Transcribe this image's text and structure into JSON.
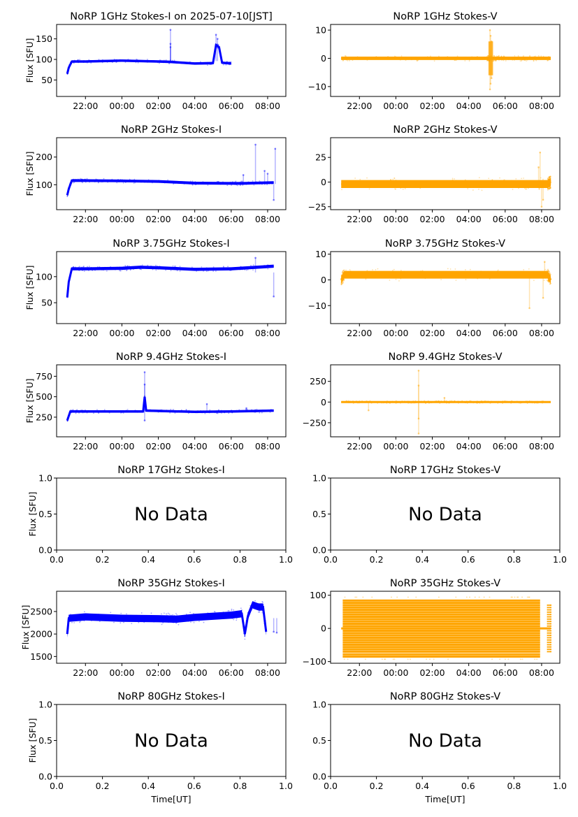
{
  "figure": {
    "xlabel": "Time[UT]",
    "ylabel": "Flux [SFU]",
    "nodata_text": "No Data",
    "colors": {
      "stokes_i": "#0000ff",
      "stokes_v": "#ffa500",
      "axes": "#000000"
    }
  },
  "chart_data": [
    {
      "id": "1g-i",
      "type": "scatter",
      "title": "NoRP 1GHz Stokes-I on 2025-07-10[JST]",
      "ylabel": "Flux [SFU]",
      "color": "#0000ff",
      "time_axis": true,
      "xlim": [
        "20:25",
        "09:00"
      ],
      "ylim": [
        10,
        185
      ],
      "yticks": [
        50,
        100,
        150
      ],
      "xticks": [
        "22:00",
        "00:00",
        "02:00",
        "04:00",
        "06:00",
        "08:00"
      ],
      "series": {
        "start": "21:00",
        "end": "06:00",
        "points": [
          [
            "21:00",
            65
          ],
          [
            "21:05",
            80
          ],
          [
            "21:15",
            95
          ],
          [
            "22:00",
            95
          ],
          [
            "00:00",
            97
          ],
          [
            "02:00",
            95
          ],
          [
            "02:40",
            94
          ],
          [
            "04:00",
            90
          ],
          [
            "05:00",
            91
          ],
          [
            "05:10",
            135
          ],
          [
            "05:20",
            130
          ],
          [
            "05:30",
            92
          ],
          [
            "06:00",
            90
          ]
        ],
        "outliers": [
          [
            "02:40",
            172
          ],
          [
            "02:40",
            138
          ],
          [
            "02:40",
            130
          ],
          [
            "05:10",
            160
          ],
          [
            "05:15",
            150
          ]
        ],
        "band": 3
      }
    },
    {
      "id": "1g-v",
      "type": "scatter",
      "title": "NoRP 1GHz Stokes-V",
      "color": "#ffa500",
      "time_axis": true,
      "xlim": [
        "20:25",
        "09:00"
      ],
      "ylim": [
        -13.5,
        12
      ],
      "yticks": [
        -10,
        0,
        10
      ],
      "xticks": [
        "22:00",
        "00:00",
        "02:00",
        "04:00",
        "06:00",
        "08:00"
      ],
      "series": {
        "start": "21:00",
        "end": "08:30",
        "points": [
          [
            "21:00",
            0
          ],
          [
            "05:00",
            0
          ],
          [
            "05:10",
            0
          ],
          [
            "06:00",
            0
          ],
          [
            "08:30",
            0
          ]
        ],
        "outliers": [
          [
            "05:10",
            10
          ],
          [
            "05:10",
            -11
          ],
          [
            "05:12",
            8
          ],
          [
            "05:12",
            -9
          ],
          [
            "05:15",
            6
          ],
          [
            "05:15",
            -7
          ]
        ],
        "band": 0.6,
        "burst": [
          [
            "05:05",
            "05:20",
            6
          ]
        ]
      }
    },
    {
      "id": "2g-i",
      "type": "scatter",
      "title": "NoRP 2GHz Stokes-I",
      "ylabel": "Flux [SFU]",
      "color": "#0000ff",
      "time_axis": true,
      "xlim": [
        "20:25",
        "09:00"
      ],
      "ylim": [
        10,
        270
      ],
      "yticks": [
        100,
        200
      ],
      "xticks": [
        "22:00",
        "00:00",
        "02:00",
        "04:00",
        "06:00",
        "08:00"
      ],
      "series": {
        "start": "21:00",
        "end": "08:20",
        "points": [
          [
            "21:00",
            62
          ],
          [
            "21:05",
            85
          ],
          [
            "21:15",
            115
          ],
          [
            "22:00",
            115
          ],
          [
            "00:00",
            114
          ],
          [
            "02:00",
            112
          ],
          [
            "04:00",
            106
          ],
          [
            "06:00",
            105
          ],
          [
            "06:40",
            105
          ],
          [
            "08:20",
            108
          ]
        ],
        "outliers": [
          "06:40",
          135
        ],
        "outliers_list": [
          [
            "06:40",
            135
          ],
          [
            "07:20",
            245
          ],
          [
            "08:25",
            230
          ],
          [
            "08:20",
            45
          ],
          [
            "07:50",
            150
          ],
          [
            "08:00",
            140
          ]
        ],
        "band": 5
      }
    },
    {
      "id": "2g-v",
      "type": "scatter",
      "title": "NoRP 2GHz Stokes-V",
      "color": "#ffa500",
      "time_axis": true,
      "xlim": [
        "20:25",
        "09:00"
      ],
      "ylim": [
        -28,
        45
      ],
      "yticks": [
        -25,
        0,
        25
      ],
      "xticks": [
        "22:00",
        "00:00",
        "02:00",
        "04:00",
        "06:00",
        "08:00"
      ],
      "series": {
        "start": "21:00",
        "end": "08:30",
        "points": [
          [
            "21:00",
            -2
          ],
          [
            "08:20",
            -2
          ],
          [
            "08:30",
            0
          ]
        ],
        "outliers": [
          [
            "07:55",
            30
          ],
          [
            "08:00",
            -25
          ],
          [
            "07:50",
            15
          ],
          [
            "08:05",
            -18
          ]
        ],
        "band": 4
      }
    },
    {
      "id": "3.75g-i",
      "type": "scatter",
      "title": "NoRP 3.75GHz Stokes-I",
      "ylabel": "Flux [SFU]",
      "color": "#0000ff",
      "time_axis": true,
      "xlim": [
        "20:25",
        "09:00"
      ],
      "ylim": [
        10,
        148
      ],
      "yticks": [
        50,
        100
      ],
      "xticks": [
        "22:00",
        "00:00",
        "02:00",
        "04:00",
        "06:00",
        "08:00"
      ],
      "series": {
        "start": "21:00",
        "end": "08:20",
        "points": [
          [
            "21:00",
            60
          ],
          [
            "21:05",
            90
          ],
          [
            "21:15",
            115
          ],
          [
            "22:00",
            115
          ],
          [
            "00:00",
            116
          ],
          [
            "01:00",
            118
          ],
          [
            "02:00",
            117
          ],
          [
            "04:00",
            114
          ],
          [
            "06:00",
            115
          ],
          [
            "08:20",
            120
          ]
        ],
        "outliers": [
          [
            "07:20",
            136
          ],
          [
            "08:20",
            62
          ]
        ],
        "band": 3
      }
    },
    {
      "id": "3.75g-v",
      "type": "scatter",
      "title": "NoRP 3.75GHz Stokes-V",
      "color": "#ffa500",
      "time_axis": true,
      "xlim": [
        "20:25",
        "09:00"
      ],
      "ylim": [
        -17,
        11
      ],
      "yticks": [
        -10,
        0,
        10
      ],
      "xticks": [
        "22:00",
        "00:00",
        "02:00",
        "04:00",
        "06:00",
        "08:00"
      ],
      "series": {
        "start": "21:00",
        "end": "08:30",
        "points": [
          [
            "21:00",
            0
          ],
          [
            "21:10",
            2
          ],
          [
            "08:20",
            2
          ],
          [
            "08:30",
            0
          ]
        ],
        "outliers": [
          [
            "07:20",
            -11
          ],
          [
            "08:05",
            -7
          ],
          [
            "08:10",
            7
          ]
        ],
        "band": 1.5
      }
    },
    {
      "id": "9.4g-i",
      "type": "scatter",
      "title": "NoRP 9.4GHz Stokes-I",
      "ylabel": "Flux [SFU]",
      "color": "#0000ff",
      "time_axis": true,
      "xlim": [
        "20:25",
        "09:00"
      ],
      "ylim": [
        10,
        890
      ],
      "yticks": [
        250,
        500,
        750
      ],
      "xticks": [
        "22:00",
        "00:00",
        "02:00",
        "04:00",
        "06:00",
        "08:00"
      ],
      "series": {
        "start": "21:00",
        "end": "08:20",
        "points": [
          [
            "21:00",
            210
          ],
          [
            "21:10",
            320
          ],
          [
            "22:00",
            320
          ],
          [
            "01:10",
            320
          ],
          [
            "01:15",
            500
          ],
          [
            "01:20",
            330
          ],
          [
            "04:00",
            315
          ],
          [
            "06:00",
            320
          ],
          [
            "08:20",
            330
          ]
        ],
        "outliers": [
          [
            "01:15",
            800
          ],
          [
            "01:15",
            650
          ],
          [
            "01:15",
            210
          ],
          [
            "04:40",
            410
          ],
          [
            "06:50",
            360
          ]
        ],
        "band": 15
      }
    },
    {
      "id": "9.4g-v",
      "type": "scatter",
      "title": "NoRP 9.4GHz Stokes-V",
      "color": "#ffa500",
      "time_axis": true,
      "xlim": [
        "20:25",
        "09:00"
      ],
      "ylim": [
        -420,
        450
      ],
      "yticks": [
        -250,
        0,
        250
      ],
      "xticks": [
        "22:00",
        "00:00",
        "02:00",
        "04:00",
        "06:00",
        "08:00"
      ],
      "series": {
        "start": "21:00",
        "end": "08:30",
        "points": [
          [
            "21:00",
            0
          ],
          [
            "08:30",
            0
          ]
        ],
        "outliers": [
          [
            "01:15",
            380
          ],
          [
            "01:15",
            -380
          ],
          [
            "01:15",
            200
          ],
          [
            "01:15",
            -200
          ],
          [
            "02:40",
            50
          ],
          [
            "22:30",
            -100
          ]
        ],
        "band": 10
      }
    },
    {
      "id": "17g-i",
      "type": "empty",
      "title": "NoRP 17GHz Stokes-I",
      "ylabel": "Flux [SFU]",
      "xlim": [
        0,
        1
      ],
      "ylim": [
        0,
        1
      ],
      "xticks": [
        "0.0",
        "0.2",
        "0.4",
        "0.6",
        "0.8",
        "1.0"
      ],
      "yticks": [
        "0.0",
        "0.5",
        "1.0"
      ],
      "annotation": "No Data"
    },
    {
      "id": "17g-v",
      "type": "empty",
      "title": "NoRP 17GHz Stokes-V",
      "xlim": [
        0,
        1
      ],
      "ylim": [
        0,
        1
      ],
      "xticks": [
        "0.0",
        "0.2",
        "0.4",
        "0.6",
        "0.8",
        "1.0"
      ],
      "yticks": [
        "0.0",
        "0.5",
        "1.0"
      ],
      "annotation": "No Data"
    },
    {
      "id": "35g-i",
      "type": "scatter",
      "title": "NoRP 35GHz Stokes-I",
      "ylabel": "Flux [SFU]",
      "color": "#0000ff",
      "time_axis": true,
      "xlim": [
        "20:25",
        "09:00"
      ],
      "ylim": [
        1350,
        2950
      ],
      "yticks": [
        1500,
        2000,
        2500
      ],
      "xticks": [
        "22:00",
        "00:00",
        "02:00",
        "04:00",
        "06:00",
        "08:00"
      ],
      "series": {
        "start": "21:00",
        "end": "08:30",
        "points": [
          [
            "21:00",
            2000
          ],
          [
            "21:05",
            2350
          ],
          [
            "22:00",
            2380
          ],
          [
            "00:00",
            2350
          ],
          [
            "02:00",
            2340
          ],
          [
            "03:00",
            2330
          ],
          [
            "04:00",
            2370
          ],
          [
            "06:00",
            2420
          ],
          [
            "06:35",
            2450
          ],
          [
            "06:45",
            2000
          ],
          [
            "06:55",
            2400
          ],
          [
            "07:10",
            2650
          ],
          [
            "07:30",
            2600
          ],
          [
            "07:45",
            2600
          ],
          [
            "07:55",
            2050
          ]
        ],
        "outliers": [
          [
            "08:20",
            2050
          ],
          [
            "08:30",
            2030
          ]
        ],
        "band": 80
      }
    },
    {
      "id": "35g-v",
      "type": "scatter",
      "title": "NoRP 35GHz Stokes-V",
      "color": "#ffa500",
      "time_axis": true,
      "xlim": [
        "20:25",
        "09:00"
      ],
      "ylim": [
        -105,
        112
      ],
      "yticks": [
        -100,
        0,
        100
      ],
      "xticks": [
        "22:00",
        "00:00",
        "02:00",
        "04:00",
        "06:00",
        "08:00"
      ],
      "series": {
        "start": "21:05",
        "end": "07:55",
        "points": [
          [
            "21:00",
            0
          ],
          [
            "08:30",
            0
          ]
        ],
        "quantized_levels": [
          -85,
          -78,
          -70,
          -63,
          -56,
          -49,
          -42,
          -35,
          -28,
          -21,
          -14,
          -7,
          0,
          7,
          14,
          21,
          28,
          35,
          42,
          49,
          56,
          63,
          70,
          77,
          84
        ],
        "band": 90
      }
    },
    {
      "id": "80g-i",
      "type": "empty",
      "title": "NoRP 80GHz Stokes-I",
      "ylabel": "Flux [SFU]",
      "xlabel": "Time[UT]",
      "xlim": [
        0,
        1
      ],
      "ylim": [
        0,
        1
      ],
      "xticks": [
        "0.0",
        "0.2",
        "0.4",
        "0.6",
        "0.8",
        "1.0"
      ],
      "yticks": [
        "0.0",
        "0.5",
        "1.0"
      ],
      "annotation": "No Data"
    },
    {
      "id": "80g-v",
      "type": "empty",
      "title": "NoRP 80GHz Stokes-V",
      "xlabel": "Time[UT]",
      "xlim": [
        0,
        1
      ],
      "ylim": [
        0,
        1
      ],
      "xticks": [
        "0.0",
        "0.2",
        "0.4",
        "0.6",
        "0.8",
        "1.0"
      ],
      "yticks": [
        "0.0",
        "0.5",
        "1.0"
      ],
      "annotation": "No Data"
    }
  ]
}
